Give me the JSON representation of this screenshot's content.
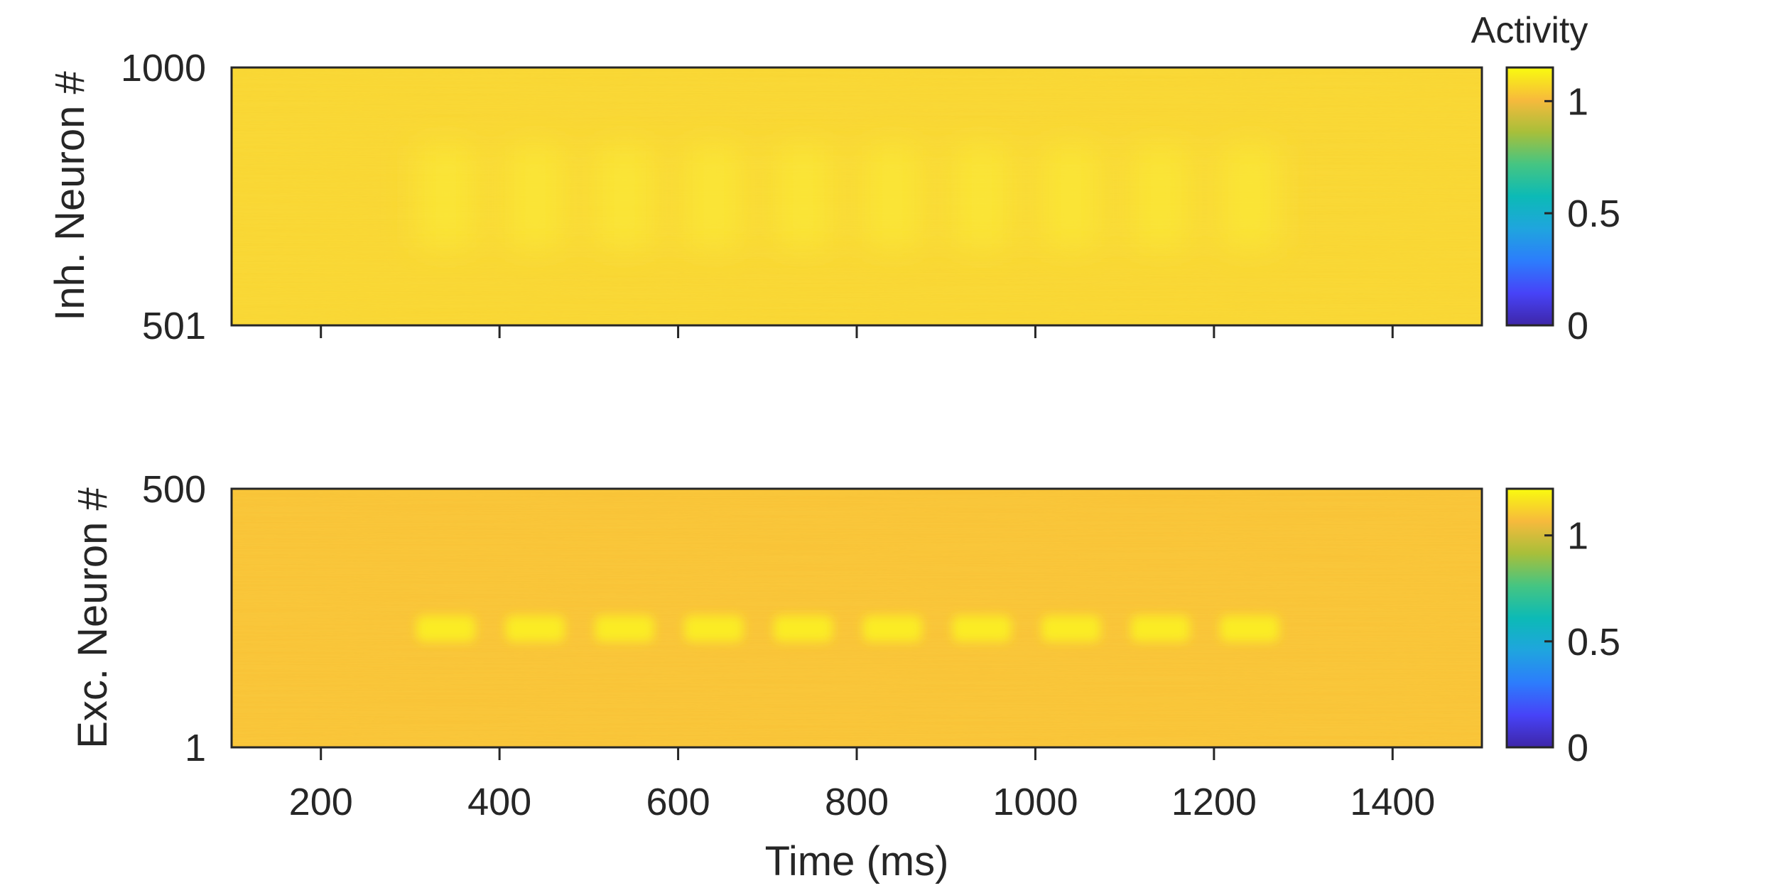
{
  "chart_data": [
    {
      "type": "heatmap",
      "title": "",
      "xlabel": "",
      "ylabel": "Inh. Neuron #",
      "xlim": [
        100,
        1500
      ],
      "ylim": [
        501,
        1000
      ],
      "xticks": [
        200,
        400,
        600,
        800,
        1000,
        1200,
        1400
      ],
      "xtick_labels_visible": false,
      "yticks": [
        501,
        1000
      ],
      "ytick_labels": [
        "501",
        "1000"
      ],
      "base_activity": 1.03,
      "bumps": {
        "centers_ms": [
          340,
          440,
          540,
          640,
          740,
          840,
          940,
          1040,
          1140,
          1240
        ],
        "width_ms": 50,
        "neuron_range": [
          650,
          850
        ],
        "peak_activity": 1.07
      },
      "colorbar": {
        "title": "Activity",
        "range": [
          0,
          1.15
        ],
        "ticks": [
          0,
          0.5,
          1
        ],
        "tick_labels": [
          "0",
          "0.5",
          "1"
        ]
      },
      "colors": {
        "low": "#3e26a8",
        "high": "#f9fb0e"
      }
    },
    {
      "type": "heatmap",
      "title": "",
      "xlabel": "Time (ms)",
      "ylabel": "Exc. Neuron #",
      "xlim": [
        100,
        1500
      ],
      "ylim": [
        1,
        500
      ],
      "xticks": [
        200,
        400,
        600,
        800,
        1000,
        1200,
        1400
      ],
      "xtick_labels": [
        "200",
        "400",
        "600",
        "800",
        "1000",
        "1200",
        "1400"
      ],
      "yticks": [
        1,
        500
      ],
      "ytick_labels": [
        "1",
        "500"
      ],
      "base_activity": 1.04,
      "bumps": {
        "centers_ms": [
          340,
          440,
          540,
          640,
          740,
          840,
          940,
          1040,
          1140,
          1240
        ],
        "width_ms": 50,
        "neuron_range": [
          205,
          255
        ],
        "peak_activity": 1.15
      },
      "colorbar": {
        "title": "",
        "range": [
          0,
          1.22
        ],
        "ticks": [
          0,
          0.5,
          1
        ],
        "tick_labels": [
          "0",
          "0.5",
          "1"
        ]
      },
      "colors": {
        "low": "#3e26a8",
        "high": "#f9fb0e"
      }
    }
  ]
}
